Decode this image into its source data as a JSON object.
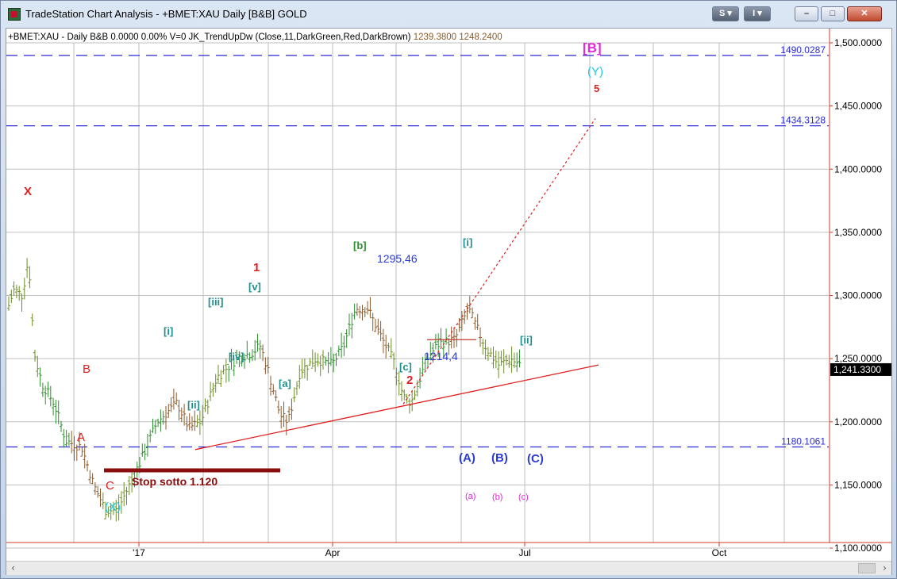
{
  "window": {
    "title": "TradeStation Chart Analysis - +BMET:XAU Daily [B&B] GOLD",
    "buttons": {
      "s_label": "S",
      "i_label": "I",
      "minimize": "–",
      "maximize": "□",
      "close": "✕"
    }
  },
  "header": {
    "symbol_line": "+BMET:XAU - Daily  B&B  0.0000  0.00%  V=0  JK_TrendUpDw (Close,11,DarkGreen,Red,DarkBrown)",
    "val1": "1239.3800",
    "val2": "1248.2400"
  },
  "price_axis": {
    "ticks": [
      "1,500.0000",
      "1,450.0000",
      "1,400.0000",
      "1,350.0000",
      "1,300.0000",
      "1,250.0000",
      "1,200.0000",
      "1,150.0000",
      "1,100.0000"
    ],
    "last_price": "1,241.3300"
  },
  "time_axis": {
    "ticks": [
      "'17",
      "Apr",
      "Jul",
      "Oct"
    ]
  },
  "levels": [
    {
      "label": "1490.0287",
      "price": 1490.0287
    },
    {
      "label": "1434.3128",
      "price": 1434.3128
    },
    {
      "label": "1180.1061",
      "price": 1180.1061
    }
  ],
  "annotations": {
    "X": "X",
    "B": "B",
    "A": "A",
    "C": "C",
    "X_paren": "(X)",
    "one": "1",
    "two": "2",
    "five": "5",
    "i": "[i]",
    "ii": "[ii]",
    "iii": "[iii]",
    "iv": "[iv]",
    "v": "[v]",
    "a": "[a]",
    "b": "[b]",
    "c": "[c]",
    "i2": "[i]",
    "ii2": "[ii]",
    "high": "1295,46",
    "low": "1214,4",
    "B_top": "[B]",
    "Y": "(Y)",
    "A_big": "(A)",
    "B_big": "(B)",
    "C_big": "(C)",
    "a_small": "(a)",
    "b_small": "(b)",
    "c_small": "(c)",
    "stop": "Stop sotto 1.120"
  },
  "colors": {
    "grid": "#bfbfbf",
    "axis": "#d23a2a",
    "level_line": "#2a2ad6",
    "trendline": "#e01f1f",
    "wave_red": "#e01f1f",
    "wave_teal": "#1e8f8f",
    "wave_green": "#2f8f2f",
    "wave_blue": "#2a3ad6",
    "wave_magenta": "#e02ad6",
    "wave_cyan": "#1ec8e6",
    "stop_bar": "#8b0d0d"
  }
}
